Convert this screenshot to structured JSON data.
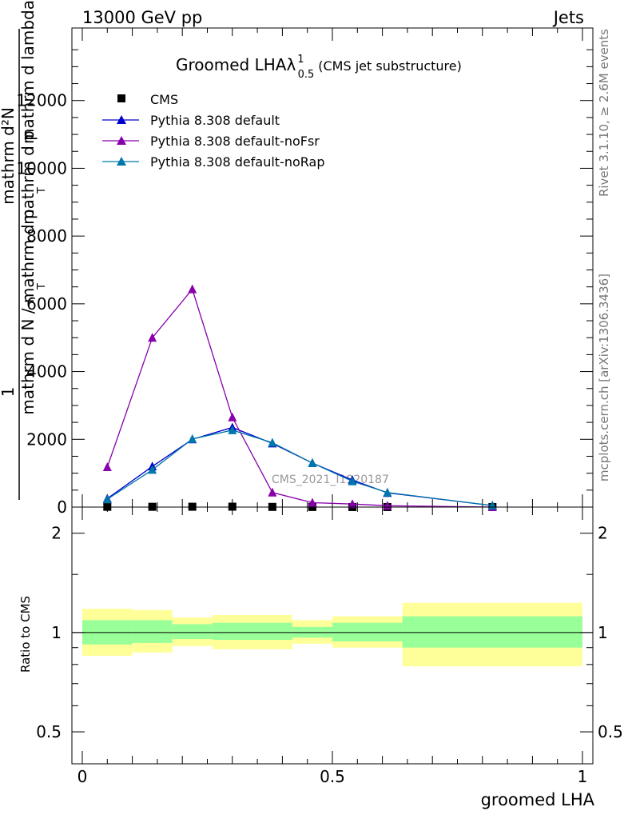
{
  "header": {
    "left": "13000 GeV pp",
    "right": "Jets"
  },
  "side_text": {
    "rivet": "Rivet 3.1.10, ≥ 2.6M events",
    "mcplots": "mcplots.cern.ch [arXiv:1306.3436]"
  },
  "watermark": "CMS_2021_I1920187",
  "colors": {
    "cms": "#000000",
    "default": "#0000cc",
    "noFsr": "#8800aa",
    "noRap": "#0077aa",
    "band_inner": "#99ff99",
    "band_outer": "#ffff99"
  },
  "chart_data": [
    {
      "type": "line",
      "title": "Groomed LHAλ",
      "title_sup": "1",
      "title_sub": "0.5",
      "title_suffix": "(CMS jet substructure)",
      "ylabel_parts": [
        "1",
        "mathrm d N / mathrm d p",
        "mathrm d²N",
        "mathrm d p",
        "mathrm d lambda",
        "T",
        "T"
      ],
      "xlim": [
        0,
        1
      ],
      "ylim": [
        0,
        14000
      ],
      "yticks": [
        0,
        2000,
        4000,
        6000,
        8000,
        10000,
        12000
      ],
      "ytick_labels": [
        "0",
        "2000",
        "4000",
        "6000",
        "8000",
        "10000",
        "12000"
      ],
      "legend_position": "top-left",
      "series": [
        {
          "name": "CMS",
          "marker": "square",
          "x": [
            0.05,
            0.14,
            0.22,
            0.3,
            0.38,
            0.46,
            0.54,
            0.61,
            0.82
          ],
          "y": [
            8,
            8,
            10,
            12,
            5,
            3,
            2,
            1,
            0.5
          ]
        },
        {
          "name": "Pythia 8.308 default",
          "marker": "triangle",
          "x": [
            0.05,
            0.14,
            0.22,
            0.3,
            0.38,
            0.46,
            0.54,
            0.61,
            0.82
          ],
          "y": [
            250,
            1200,
            2000,
            2350,
            1880,
            1300,
            800,
            420,
            45
          ]
        },
        {
          "name": "Pythia 8.308 default-noFsr",
          "marker": "triangle",
          "x": [
            0.05,
            0.14,
            0.22,
            0.3,
            0.38,
            0.46,
            0.54,
            0.61,
            0.82
          ],
          "y": [
            1180,
            5000,
            6430,
            2650,
            430,
            130,
            90,
            40,
            0
          ]
        },
        {
          "name": "Pythia 8.308 default-noRap",
          "marker": "triangle",
          "x": [
            0.05,
            0.14,
            0.22,
            0.3,
            0.38,
            0.46,
            0.54,
            0.61,
            0.82
          ],
          "y": [
            230,
            1100,
            2010,
            2270,
            1900,
            1300,
            760,
            430,
            45
          ]
        }
      ]
    },
    {
      "type": "area",
      "ylabel": "Ratio to CMS",
      "xlabel": "groomed LHA",
      "xlim": [
        0,
        1
      ],
      "ylim": [
        0.4,
        2.4
      ],
      "log_scale": true,
      "yticks": [
        0.5,
        1,
        2
      ],
      "ytick_labels": [
        "0.5",
        "1",
        "2"
      ],
      "xticks": [
        0,
        0.5,
        1
      ],
      "xtick_labels": [
        "0",
        "0.5",
        "1"
      ],
      "reference_line": 1,
      "bins": [
        {
          "x0": 0.0,
          "x1": 0.1,
          "inner": [
            0.92,
            1.09
          ],
          "outer": [
            0.85,
            1.18
          ]
        },
        {
          "x0": 0.1,
          "x1": 0.18,
          "inner": [
            0.93,
            1.09
          ],
          "outer": [
            0.87,
            1.17
          ]
        },
        {
          "x0": 0.18,
          "x1": 0.26,
          "inner": [
            0.955,
            1.06
          ],
          "outer": [
            0.91,
            1.11
          ]
        },
        {
          "x0": 0.26,
          "x1": 0.42,
          "inner": [
            0.95,
            1.07
          ],
          "outer": [
            0.89,
            1.13
          ]
        },
        {
          "x0": 0.42,
          "x1": 0.5,
          "inner": [
            0.965,
            1.04
          ],
          "outer": [
            0.925,
            1.09
          ]
        },
        {
          "x0": 0.5,
          "x1": 0.64,
          "inner": [
            0.94,
            1.07
          ],
          "outer": [
            0.9,
            1.12
          ]
        },
        {
          "x0": 0.64,
          "x1": 1.0,
          "inner": [
            0.9,
            1.12
          ],
          "outer": [
            0.79,
            1.23
          ]
        }
      ]
    }
  ]
}
